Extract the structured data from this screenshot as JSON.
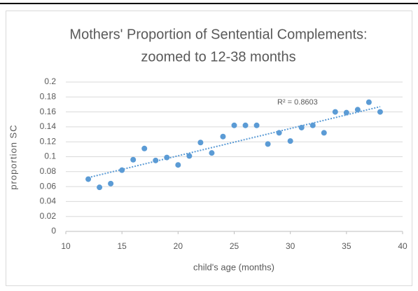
{
  "chart_data": {
    "type": "scatter",
    "title": [
      "Mothers' Proportion of Sentential Complements:",
      "zoomed to 12-38 months"
    ],
    "x_label": "child's age (months)",
    "y_label": "proportion SC",
    "series": [
      {
        "name": "proportion SC",
        "color": "#5b9bd5",
        "x": [
          12,
          13,
          14,
          15,
          16,
          17,
          18,
          19,
          20,
          21,
          22,
          23,
          24,
          25,
          26,
          27,
          28,
          29,
          30,
          31,
          32,
          33,
          34,
          35,
          36,
          37,
          38
        ],
        "values": [
          0.07,
          0.059,
          0.064,
          0.082,
          0.096,
          0.111,
          0.095,
          0.099,
          0.089,
          0.101,
          0.119,
          0.105,
          0.127,
          0.142,
          0.142,
          0.142,
          0.117,
          0.132,
          0.121,
          0.139,
          0.142,
          0.132,
          0.16,
          0.159,
          0.163,
          0.173,
          0.16
        ]
      }
    ],
    "trendline": {
      "x": [
        12,
        38
      ],
      "values": [
        0.072,
        0.167
      ],
      "label": "R² = 0.8603"
    },
    "xlim": [
      10,
      40
    ],
    "xticks": [
      10,
      15,
      20,
      25,
      30,
      35,
      40
    ],
    "ylim": [
      0,
      0.2
    ],
    "yticks": [
      0,
      0.02,
      0.04,
      0.06,
      0.08,
      0.1,
      0.12,
      0.14,
      0.16,
      0.18,
      0.2
    ],
    "grid": true
  }
}
